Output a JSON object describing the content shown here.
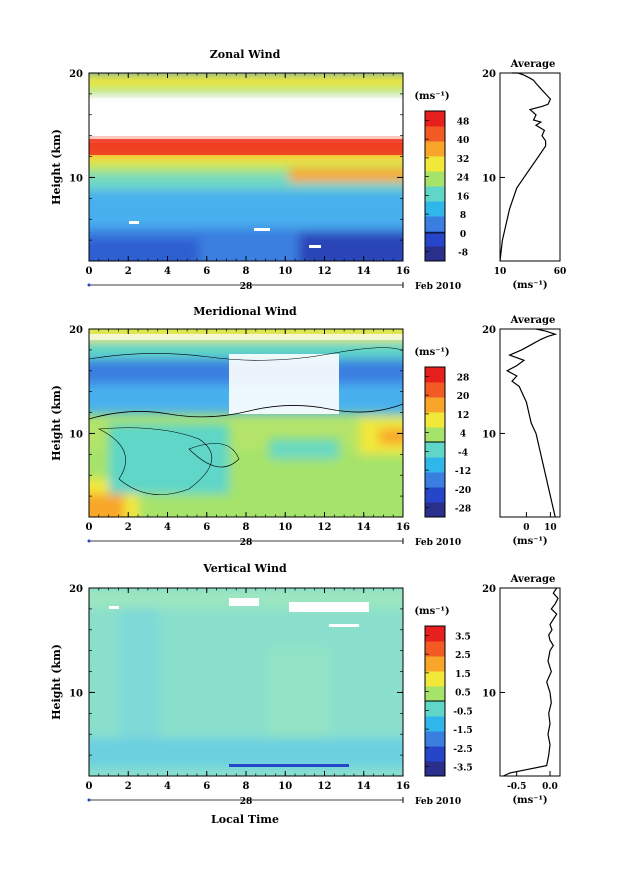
{
  "figure": {
    "xlabel": "Local Time",
    "date_label": "28",
    "month_label": "Feb 2010",
    "unit_label": "(ms⁻¹)",
    "average_unit_label": "(ms⁻¹)"
  },
  "chart_data": [
    {
      "type": "heatmap",
      "title": "Zonal Wind",
      "ylabel": "Height (km)",
      "x_ticks": [
        "0",
        "2",
        "4",
        "6",
        "8",
        "10",
        "12",
        "14",
        "16"
      ],
      "xlim": [
        0,
        16
      ],
      "y_ticks": [
        "10",
        "20"
      ],
      "ylim": [
        2,
        20
      ],
      "colorbar": {
        "ticks": [
          "48",
          "40",
          "32",
          "24",
          "16",
          "8",
          "0",
          "-8"
        ],
        "min": -12,
        "max": 52,
        "colors": [
          "#2a2f8c",
          "#2546c8",
          "#3a7fe0",
          "#2fb6ea",
          "#5fd6c8",
          "#a6e36a",
          "#f2e83a",
          "#f8a62a",
          "#f25b24",
          "#e81f1f"
        ]
      },
      "profile": {
        "title": "Average",
        "x_ticks": [
          "10",
          "60"
        ],
        "xlim": [
          10,
          60
        ],
        "y_ticks": [
          "10",
          "20"
        ],
        "ylim": [
          2,
          20
        ],
        "x": [
          10,
          11,
          12,
          14,
          16,
          18,
          21,
          24,
          27,
          30,
          33,
          36,
          39,
          42,
          45,
          48,
          48,
          45,
          47,
          40,
          44,
          38,
          40,
          35,
          45,
          50,
          52,
          48,
          44,
          40,
          38,
          35,
          30,
          25,
          20
        ],
        "y": [
          2,
          3,
          4,
          5,
          6,
          7,
          8,
          9,
          9.5,
          10,
          10.5,
          11,
          11.5,
          12,
          12.5,
          13,
          13.5,
          14,
          14.5,
          15,
          15.3,
          15.5,
          16,
          16.5,
          16.8,
          17,
          17.5,
          18,
          18.5,
          19,
          19.3,
          19.5,
          19.8,
          20,
          20
        ]
      }
    },
    {
      "type": "heatmap",
      "title": "Meridional Wind",
      "ylabel": "Height (km)",
      "x_ticks": [
        "0",
        "2",
        "4",
        "6",
        "8",
        "10",
        "12",
        "14",
        "16"
      ],
      "xlim": [
        0,
        16
      ],
      "y_ticks": [
        "10",
        "20"
      ],
      "ylim": [
        2,
        20
      ],
      "colorbar": {
        "ticks": [
          "28",
          "20",
          "12",
          "4",
          "-4",
          "-12",
          "-20",
          "-28"
        ],
        "min": -32,
        "max": 32,
        "colors": [
          "#2a2f8c",
          "#2546c8",
          "#3a7fe0",
          "#2fb6ea",
          "#5fd6c8",
          "#a6e36a",
          "#f2e83a",
          "#f8a62a",
          "#f25b24",
          "#e81f1f"
        ]
      },
      "profile": {
        "title": "Average",
        "x_ticks": [
          "0",
          "10"
        ],
        "xlim": [
          -11,
          14
        ],
        "y_ticks": [
          "10",
          "20"
        ],
        "ylim": [
          2,
          20
        ],
        "x": [
          12,
          11,
          10,
          9,
          8,
          7,
          6,
          5,
          4,
          3,
          2,
          1,
          0,
          -2,
          -3,
          -6,
          -4,
          -8,
          -4,
          -1,
          -7,
          -2,
          2,
          6,
          9,
          12,
          8,
          4
        ],
        "y": [
          2,
          3,
          4,
          5,
          6,
          7,
          8,
          9,
          10,
          10.5,
          11,
          12,
          13,
          14,
          14.5,
          15,
          15.5,
          16,
          16.5,
          17,
          17.5,
          18,
          18.5,
          19,
          19.3,
          19.5,
          19.8,
          20
        ]
      }
    },
    {
      "type": "heatmap",
      "title": "Vertical Wind",
      "ylabel": "Height (km)",
      "x_ticks": [
        "0",
        "2",
        "4",
        "6",
        "8",
        "10",
        "12",
        "14",
        "16"
      ],
      "xlim": [
        0,
        16
      ],
      "y_ticks": [
        "10",
        "20"
      ],
      "ylim": [
        2,
        20
      ],
      "colorbar": {
        "ticks": [
          "3.5",
          "2.5",
          "1.5",
          "0.5",
          "-0.5",
          "-1.5",
          "-2.5",
          "-3.5"
        ],
        "min": -4,
        "max": 4,
        "colors": [
          "#2a2f8c",
          "#2546c8",
          "#3a7fe0",
          "#2fb6ea",
          "#5fd6c8",
          "#a6e36a",
          "#f2e83a",
          "#f8a62a",
          "#f25b24",
          "#e81f1f"
        ]
      },
      "profile": {
        "title": "Average",
        "x_ticks": [
          "-0.5",
          "0.0"
        ],
        "xlim": [
          -0.75,
          0.15
        ],
        "y_ticks": [
          "10",
          "20"
        ],
        "ylim": [
          2,
          20
        ],
        "x": [
          -0.7,
          -0.6,
          -0.05,
          -0.02,
          0.0,
          -0.03,
          0.0,
          -0.02,
          0.02,
          0.0,
          -0.05,
          0.02,
          -0.03,
          0.0,
          0.05,
          0.0,
          -0.02,
          0.03,
          0.0,
          0.05,
          0.1,
          0.02,
          0.08,
          0.12,
          0.05,
          0.1
        ],
        "y": [
          2,
          2.3,
          3,
          4,
          5,
          6,
          7,
          8,
          9,
          10,
          11,
          12,
          13,
          14,
          14.5,
          15,
          15.5,
          16,
          16.5,
          17,
          17.5,
          18,
          18.5,
          19,
          19.5,
          20
        ]
      }
    }
  ]
}
